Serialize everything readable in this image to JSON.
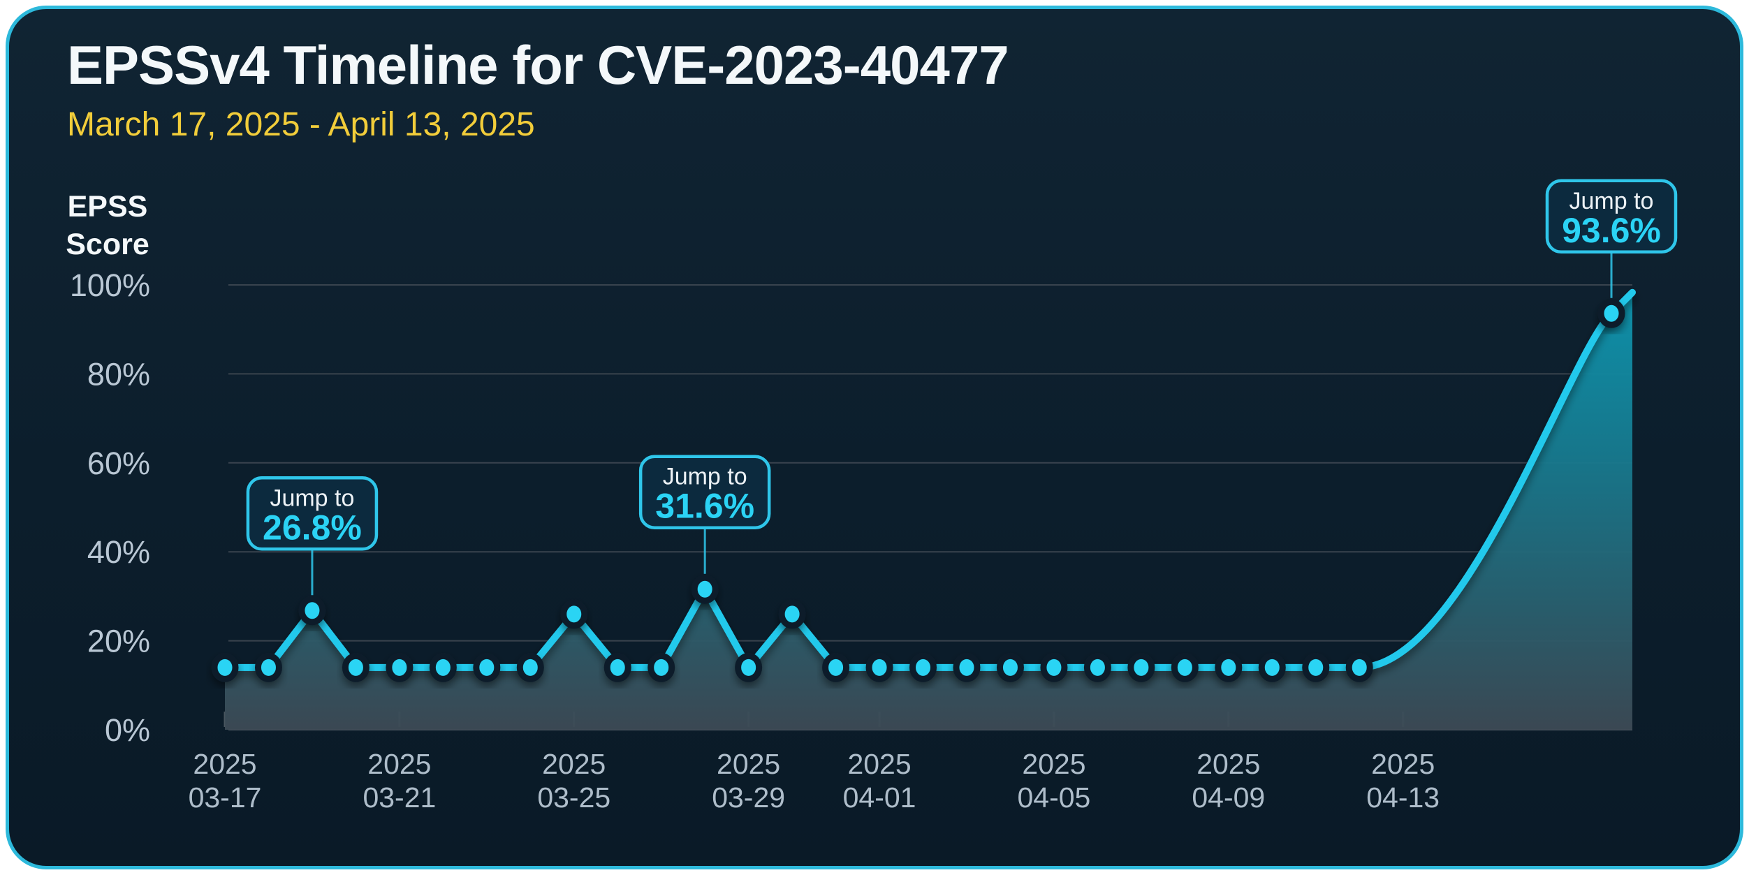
{
  "card": {
    "title": "EPSSv4 Timeline for CVE-2023-40477",
    "subtitle": "March 17, 2025 - April 13, 2025",
    "ylabel_line1": "EPSS",
    "ylabel_line2": "Score",
    "border_color": "#2db9db",
    "background_color": "#0d2130",
    "accent_color": "#22c9ec",
    "subtitle_color": "#f2cd3a"
  },
  "chart_data": {
    "type": "area",
    "title": "EPSSv4 Timeline for CVE-2023-40477",
    "subtitle": "March 17, 2025 - April 13, 2025",
    "xlabel": "",
    "ylabel": "EPSS Score",
    "ylim": [
      0,
      100
    ],
    "grid": "horizontal",
    "legend": false,
    "x": [
      "2025-03-17",
      "2025-03-18",
      "2025-03-19",
      "2025-03-20",
      "2025-03-21",
      "2025-03-22",
      "2025-03-23",
      "2025-03-24",
      "2025-03-25",
      "2025-03-26",
      "2025-03-27",
      "2025-03-28",
      "2025-03-29",
      "2025-03-30",
      "2025-03-31",
      "2025-04-01",
      "2025-04-02",
      "2025-04-03",
      "2025-04-04",
      "2025-04-05",
      "2025-04-06",
      "2025-04-07",
      "2025-04-08",
      "2025-04-09",
      "2025-04-10",
      "2025-04-11",
      "2025-04-12",
      "2025-04-13"
    ],
    "series": [
      {
        "name": "EPSS Score (%)",
        "values": [
          14,
          14,
          26.8,
          14,
          14,
          14,
          14,
          14,
          26,
          14,
          14,
          31.6,
          14,
          26,
          14,
          14,
          14,
          14,
          14,
          14,
          14,
          14,
          14,
          14,
          14,
          14,
          14,
          93.6
        ]
      }
    ],
    "y_ticks": [
      {
        "label": "100%",
        "value": 100
      },
      {
        "label": "80%",
        "value": 80
      },
      {
        "label": "60%",
        "value": 60
      },
      {
        "label": "40%",
        "value": 40
      },
      {
        "label": "20%",
        "value": 20
      },
      {
        "label": "0%",
        "value": 0
      }
    ],
    "x_tick_labels": [
      {
        "line1": "2025",
        "line2": "03-17",
        "day_index": 0
      },
      {
        "line1": "2025",
        "line2": "03-21",
        "day_index": 4
      },
      {
        "line1": "2025",
        "line2": "03-25",
        "day_index": 8
      },
      {
        "line1": "2025",
        "line2": "03-29",
        "day_index": 12
      },
      {
        "line1": "2025",
        "line2": "04-01",
        "day_index": 15
      },
      {
        "line1": "2025",
        "line2": "04-05",
        "day_index": 19
      },
      {
        "line1": "2025",
        "line2": "04-09",
        "day_index": 23
      },
      {
        "line1": "2025",
        "line2": "04-13",
        "day_index": 27
      }
    ],
    "annotations": [
      {
        "label": "Jump to",
        "value": "26.8%",
        "day_index": 2
      },
      {
        "label": "Jump to",
        "value": "31.6%",
        "day_index": 11
      },
      {
        "label": "Jump to",
        "value": "93.6%",
        "day_index": 27
      }
    ],
    "line_color": "#22c9ec",
    "dot_color": "#2bd4f4",
    "area_gradient": [
      "#0d97b1",
      "#177b90",
      "#29606f",
      "#3d4a55"
    ]
  }
}
